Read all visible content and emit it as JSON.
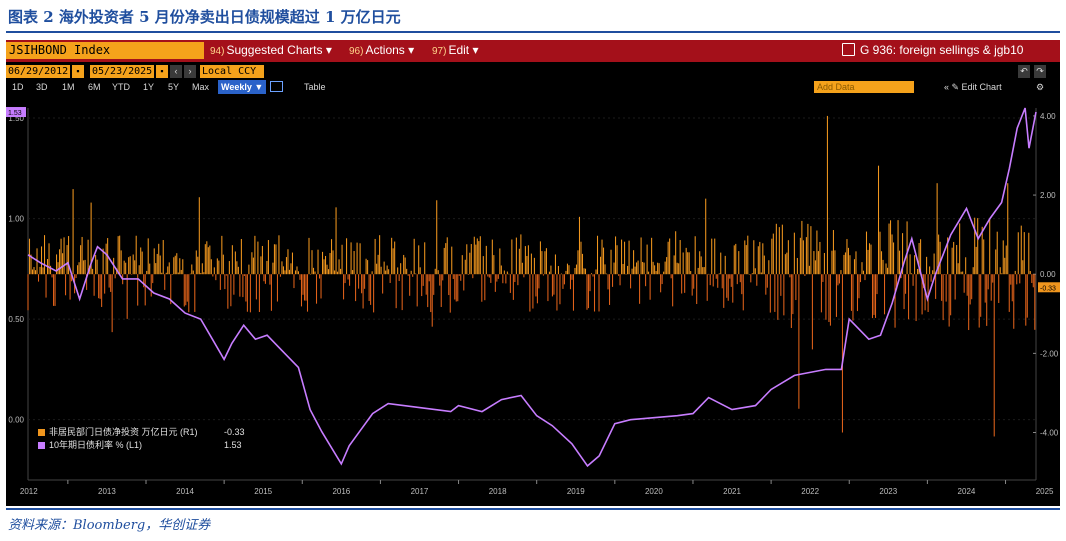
{
  "caption": "图表 2  海外投资者 5 月份净卖出日债规模超过 1 万亿日元",
  "source": "资料来源：Bloomberg，华创证券",
  "terminal": {
    "ticker": "JSIHBOND Index",
    "menu": [
      {
        "num": "94)",
        "label": "Suggested Charts ▾"
      },
      {
        "num": "96)",
        "label": "Actions ▾"
      },
      {
        "num": "97)",
        "label": "Edit ▾"
      }
    ],
    "title_right": "G 936: foreign sellings & jgb10",
    "start_date": "06/29/2012",
    "end_date": "05/23/2025",
    "currency": "Local CCY",
    "periods": [
      "1D",
      "3D",
      "1M",
      "6M",
      "YTD",
      "1Y",
      "5Y",
      "Max"
    ],
    "active_period": "Weekly ▼",
    "table_label": "Table",
    "add_data": "Add Data",
    "edit_chart": "« ✎ Edit Chart"
  },
  "chart_data": {
    "type": "bar+line",
    "x_range": [
      2012.49,
      2025.39
    ],
    "x_ticks": [
      "2012",
      "2013",
      "2014",
      "2015",
      "2016",
      "2017",
      "2018",
      "2019",
      "2020",
      "2021",
      "2022",
      "2023",
      "2024",
      "2025"
    ],
    "y_left": {
      "ticks": [
        "0.00",
        "0.50",
        "1.00",
        "1.50"
      ],
      "range": [
        -0.3,
        1.55
      ],
      "last_value_label": "1.53"
    },
    "y_right": {
      "ticks": [
        "-4.00",
        "-2.00",
        "0.00",
        "2.00",
        "4.00"
      ],
      "range": [
        -5.2,
        4.2
      ],
      "last_value_label": "-0.33"
    },
    "series": [
      {
        "name": "非居民部门日债净投资 万亿日元 (R1)",
        "axis": "right",
        "type": "bar",
        "color": "#f0961e",
        "last_value": "-0.33",
        "notable_points": [
          {
            "x": 2022.72,
            "y": 4.0
          },
          {
            "x": 2022.35,
            "y": -3.4
          },
          {
            "x": 2024.13,
            "y": 2.3
          },
          {
            "x": 2022.52,
            "y": -1.9
          },
          {
            "x": 2024.85,
            "y": -4.1
          },
          {
            "x": 2022.92,
            "y": -4.0
          },
          {
            "x": 2025.03,
            "y": 2.3
          },
          {
            "x": 2025.25,
            "y": -1.3
          },
          {
            "x": 2025.36,
            "y": -0.33
          }
        ]
      },
      {
        "name": "10年期日债利率 % (L1)",
        "axis": "left",
        "type": "line",
        "color": "#c77dff",
        "last_value": "1.53",
        "points": [
          [
            2012.49,
            0.82
          ],
          [
            2012.65,
            0.78
          ],
          [
            2012.85,
            0.74
          ],
          [
            2013.0,
            0.78
          ],
          [
            2013.15,
            0.6
          ],
          [
            2013.3,
            0.78
          ],
          [
            2013.38,
            0.86
          ],
          [
            2013.5,
            0.82
          ],
          [
            2013.7,
            0.7
          ],
          [
            2013.9,
            0.7
          ],
          [
            2014.1,
            0.63
          ],
          [
            2014.3,
            0.6
          ],
          [
            2014.5,
            0.53
          ],
          [
            2014.7,
            0.5
          ],
          [
            2014.85,
            0.4
          ],
          [
            2015.0,
            0.3
          ],
          [
            2015.1,
            0.38
          ],
          [
            2015.25,
            0.47
          ],
          [
            2015.4,
            0.4
          ],
          [
            2015.55,
            0.42
          ],
          [
            2015.75,
            0.34
          ],
          [
            2015.95,
            0.26
          ],
          [
            2016.1,
            0.05
          ],
          [
            2016.25,
            -0.06
          ],
          [
            2016.5,
            -0.22
          ],
          [
            2016.6,
            -0.13
          ],
          [
            2016.75,
            -0.05
          ],
          [
            2016.9,
            0.03
          ],
          [
            2017.1,
            0.08
          ],
          [
            2017.5,
            0.06
          ],
          [
            2017.9,
            0.04
          ],
          [
            2018.0,
            0.07
          ],
          [
            2018.3,
            0.04
          ],
          [
            2018.55,
            0.1
          ],
          [
            2018.8,
            0.12
          ],
          [
            2019.0,
            0.02
          ],
          [
            2019.2,
            -0.03
          ],
          [
            2019.45,
            -0.12
          ],
          [
            2019.65,
            -0.23
          ],
          [
            2019.8,
            -0.18
          ],
          [
            2020.0,
            -0.02
          ],
          [
            2020.2,
            0.0
          ],
          [
            2020.5,
            0.01
          ],
          [
            2020.8,
            0.02
          ],
          [
            2021.0,
            0.03
          ],
          [
            2021.2,
            0.11
          ],
          [
            2021.5,
            0.05
          ],
          [
            2021.8,
            0.07
          ],
          [
            2022.0,
            0.15
          ],
          [
            2022.3,
            0.22
          ],
          [
            2022.7,
            0.25
          ],
          [
            2022.9,
            0.25
          ],
          [
            2023.0,
            0.5
          ],
          [
            2023.25,
            0.4
          ],
          [
            2023.4,
            0.42
          ],
          [
            2023.55,
            0.58
          ],
          [
            2023.7,
            0.78
          ],
          [
            2023.8,
            0.9
          ],
          [
            2024.0,
            0.6
          ],
          [
            2024.1,
            0.72
          ],
          [
            2024.3,
            0.92
          ],
          [
            2024.5,
            1.05
          ],
          [
            2024.65,
            0.9
          ],
          [
            2024.8,
            1.0
          ],
          [
            2024.95,
            1.08
          ],
          [
            2025.05,
            1.25
          ],
          [
            2025.15,
            1.45
          ],
          [
            2025.25,
            1.55
          ],
          [
            2025.3,
            1.35
          ],
          [
            2025.39,
            1.53
          ]
        ]
      }
    ],
    "legend_position": "bottom-left"
  },
  "colors": {
    "bars": "#f0961e",
    "line": "#c77dff",
    "menu_bar": "#a4101a",
    "field": "#f5a21b",
    "caption": "#1f4e9e"
  }
}
